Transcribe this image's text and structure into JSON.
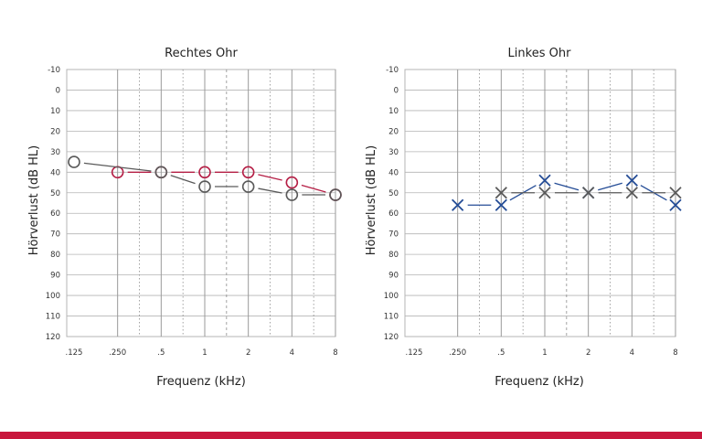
{
  "colors": {
    "right_ear": "#b51e45",
    "left_ear": "#244c96",
    "bone": "#5a5a5a",
    "grid": "#b4b4b4",
    "grid_dashed": "#8c8c8c",
    "text": "#222222",
    "tick_text": "#333333",
    "bottom_bar": "#c8163c"
  },
  "chart_data": [
    {
      "type": "scatter",
      "title": "Rechtes Ohr",
      "xlabel": "Frequenz (kHz)",
      "ylabel": "Hörverlust (dB HL)",
      "x_ticks": [
        ".125",
        ".250",
        ".5",
        "1",
        "2",
        "4",
        "8"
      ],
      "y_ticks": [
        "-10",
        "0",
        "10",
        "20",
        "30",
        "40",
        "50",
        "60",
        "70",
        "80",
        "90",
        "100",
        "110",
        "120"
      ],
      "ylim": [
        -10,
        120
      ],
      "y_inverted": true,
      "x_scale": "log-octave",
      "grid": true,
      "series": [
        {
          "style": "circle-marker red",
          "points": [
            {
              "x": ".250",
              "y": 40
            },
            {
              "x": ".5",
              "y": 40
            },
            {
              "x": "1",
              "y": 40
            },
            {
              "x": "2",
              "y": 40
            },
            {
              "x": "4",
              "y": 45
            },
            {
              "x": "8",
              "y": 51
            }
          ]
        },
        {
          "style": "circle-marker gray",
          "points": [
            {
              "x": ".125",
              "y": 35
            },
            {
              "x": ".5",
              "y": 40
            },
            {
              "x": "1",
              "y": 47
            },
            {
              "x": "2",
              "y": 47
            },
            {
              "x": "4",
              "y": 51
            },
            {
              "x": "8",
              "y": 51
            }
          ]
        }
      ]
    },
    {
      "type": "scatter",
      "title": "Linkes Ohr",
      "xlabel": "Frequenz (kHz)",
      "ylabel": "Hörverlust (dB HL)",
      "x_ticks": [
        ".125",
        ".250",
        ".5",
        "1",
        "2",
        "4",
        "8"
      ],
      "y_ticks": [
        "-10",
        "0",
        "10",
        "20",
        "30",
        "40",
        "50",
        "60",
        "70",
        "80",
        "90",
        "100",
        "110",
        "120"
      ],
      "ylim": [
        -10,
        120
      ],
      "y_inverted": true,
      "x_scale": "log-octave",
      "grid": true,
      "series": [
        {
          "style": "x-marker blue",
          "points": [
            {
              "x": ".250",
              "y": 56
            },
            {
              "x": ".5",
              "y": 56
            },
            {
              "x": "1",
              "y": 44
            },
            {
              "x": "2",
              "y": 50
            },
            {
              "x": "4",
              "y": 44
            },
            {
              "x": "8",
              "y": 56
            }
          ]
        },
        {
          "style": "x-marker gray",
          "points": [
            {
              "x": ".5",
              "y": 50
            },
            {
              "x": "1",
              "y": 50
            },
            {
              "x": "2",
              "y": 50
            },
            {
              "x": "4",
              "y": 50
            },
            {
              "x": "8",
              "y": 50
            }
          ]
        }
      ]
    }
  ]
}
